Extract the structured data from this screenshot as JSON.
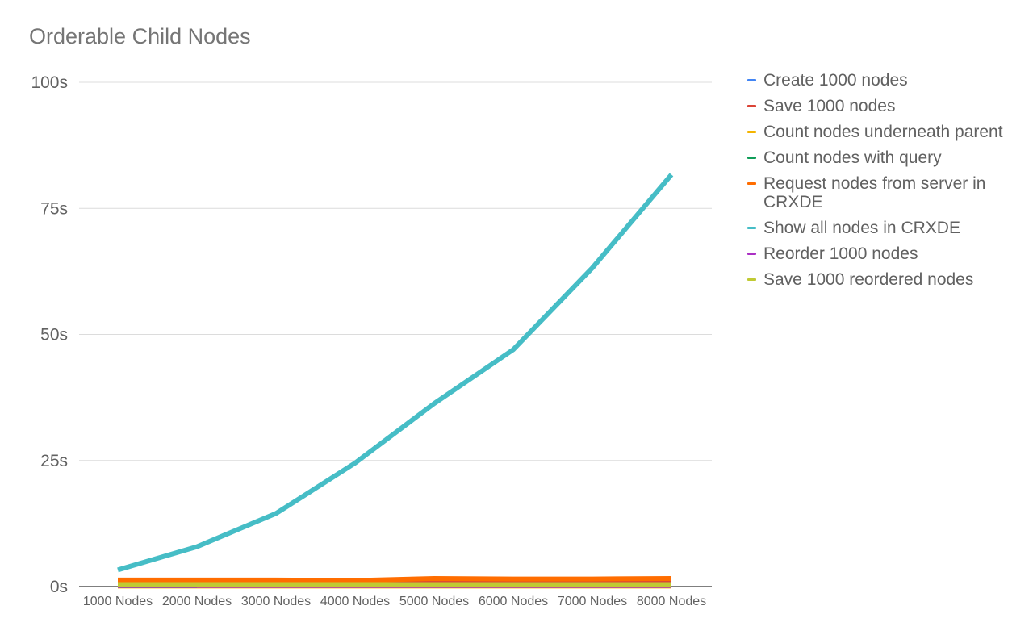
{
  "chart_data": {
    "type": "line",
    "title": "Orderable Child Nodes",
    "xlabel": "",
    "ylabel": "",
    "categories": [
      "1000 Nodes",
      "2000 Nodes",
      "3000 Nodes",
      "4000 Nodes",
      "5000 Nodes",
      "6000 Nodes",
      "7000 Nodes",
      "8000 Nodes"
    ],
    "ylim": [
      0,
      100
    ],
    "yticks": [
      0,
      25,
      50,
      75,
      100
    ],
    "ytick_labels": [
      "0s",
      "25s",
      "50s",
      "75s",
      "100s"
    ],
    "grid": true,
    "legend_position": "right",
    "series": [
      {
        "name": "Create 1000 nodes",
        "color": "#4285F4",
        "values": [
          0.3,
          0.3,
          0.3,
          0.3,
          0.3,
          0.3,
          0.3,
          0.3
        ]
      },
      {
        "name": "Save 1000 nodes",
        "color": "#DB4437",
        "values": [
          0.8,
          0.8,
          0.9,
          0.8,
          0.9,
          0.9,
          0.9,
          0.9
        ]
      },
      {
        "name": "Count nodes underneath parent",
        "color": "#F4B400",
        "values": [
          0.1,
          0.1,
          0.1,
          0.1,
          0.1,
          0.1,
          0.1,
          0.1
        ]
      },
      {
        "name": "Count nodes with query",
        "color": "#0F9D58",
        "values": [
          0.2,
          0.2,
          null,
          null,
          null,
          null,
          null,
          null
        ]
      },
      {
        "name": "Request nodes from server in CRXDE",
        "color": "#FF6D00",
        "values": [
          1.3,
          1.3,
          1.3,
          1.2,
          1.6,
          1.5,
          1.5,
          1.6
        ]
      },
      {
        "name": "Show all nodes in CRXDE",
        "color": "#46BDC6",
        "values": [
          3.3,
          7.9,
          14.5,
          24.5,
          36.3,
          47.0,
          63.2,
          81.7
        ]
      },
      {
        "name": "Reorder 1000 nodes",
        "color": "#AB30C4",
        "values": [
          0.2,
          0.2,
          0.2,
          0.2,
          0.2,
          0.2,
          0.2,
          0.2
        ]
      },
      {
        "name": "Save 1000 reordered nodes",
        "color": "#C0CA33",
        "values": [
          0.4,
          0.4,
          0.4,
          0.4,
          0.4,
          0.4,
          0.4,
          0.4
        ]
      }
    ]
  }
}
